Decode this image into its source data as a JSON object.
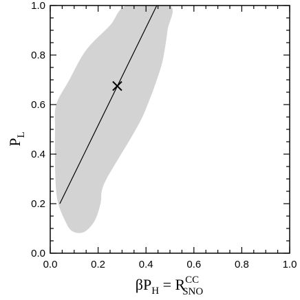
{
  "chart_data": {
    "type": "scatter",
    "title": "",
    "xlabel": {
      "main": "βP",
      "main_sub": "H",
      "eq": " = R",
      "sup": "CC",
      "sub": "SNO"
    },
    "ylabel": {
      "main": "P",
      "sub": "L"
    },
    "xlim": [
      0,
      1
    ],
    "ylim": [
      0,
      1
    ],
    "xticks": [
      0.0,
      0.2,
      0.4,
      0.6,
      0.8,
      1.0
    ],
    "yticks": [
      0.0,
      0.2,
      0.4,
      0.6,
      0.8,
      1.0
    ],
    "xtick_labels": [
      "0.0",
      "0.2",
      "0.4",
      "0.6",
      "0.8",
      "1.0"
    ],
    "ytick_labels": [
      "0.0",
      "0.2",
      "0.4",
      "0.6",
      "0.8",
      "1.0"
    ],
    "grid": false,
    "region_color": "#d3d3d3",
    "allowed_region": [
      [
        0.025,
        0.6
      ],
      [
        0.08,
        0.7
      ],
      [
        0.15,
        0.82
      ],
      [
        0.25,
        0.92
      ],
      [
        0.32,
        1.0
      ],
      [
        0.5,
        1.0
      ],
      [
        0.49,
        0.9
      ],
      [
        0.47,
        0.78
      ],
      [
        0.445,
        0.7
      ],
      [
        0.415,
        0.62
      ],
      [
        0.385,
        0.55
      ],
      [
        0.34,
        0.47
      ],
      [
        0.29,
        0.39
      ],
      [
        0.235,
        0.3
      ],
      [
        0.215,
        0.25
      ],
      [
        0.21,
        0.2
      ],
      [
        0.185,
        0.13
      ],
      [
        0.14,
        0.085
      ],
      [
        0.09,
        0.09
      ],
      [
        0.06,
        0.135
      ],
      [
        0.035,
        0.195
      ],
      [
        0.025,
        0.25
      ],
      [
        0.02,
        0.35
      ],
      [
        0.02,
        0.5
      ]
    ],
    "line": [
      [
        0.04,
        0.2
      ],
      [
        0.445,
        1.0
      ]
    ],
    "marker": {
      "x": 0.28,
      "y": 0.675,
      "symbol": "×"
    }
  }
}
